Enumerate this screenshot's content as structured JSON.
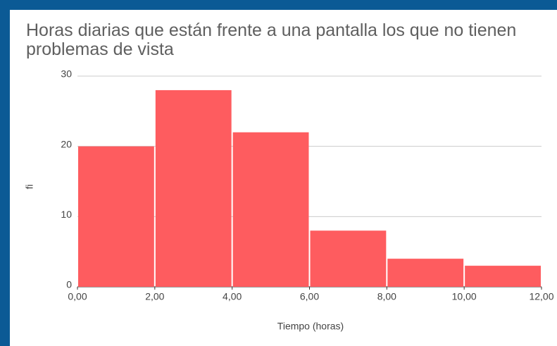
{
  "chart_data": {
    "type": "histogram",
    "title": "Horas diarias que están frente a una pantalla los que no tienen problemas de vista",
    "xlabel": "Tiempo (horas)",
    "ylabel": "fi",
    "bins": [
      0,
      2,
      4,
      6,
      8,
      10,
      12
    ],
    "values": [
      20,
      28,
      22,
      8,
      4,
      3
    ],
    "color": "#fe5c5f",
    "xlim": [
      0,
      12
    ],
    "xticks": [
      {
        "value": 0,
        "label": "0,00"
      },
      {
        "value": 2,
        "label": "2,00"
      },
      {
        "value": 4,
        "label": "4,00"
      },
      {
        "value": 6,
        "label": "6,00"
      },
      {
        "value": 8,
        "label": "8,00"
      },
      {
        "value": 10,
        "label": "10,00"
      },
      {
        "value": 12,
        "label": "12,00"
      }
    ],
    "ylim": [
      0,
      30
    ],
    "yticks": [
      0,
      10,
      20,
      30
    ],
    "grid": true
  }
}
